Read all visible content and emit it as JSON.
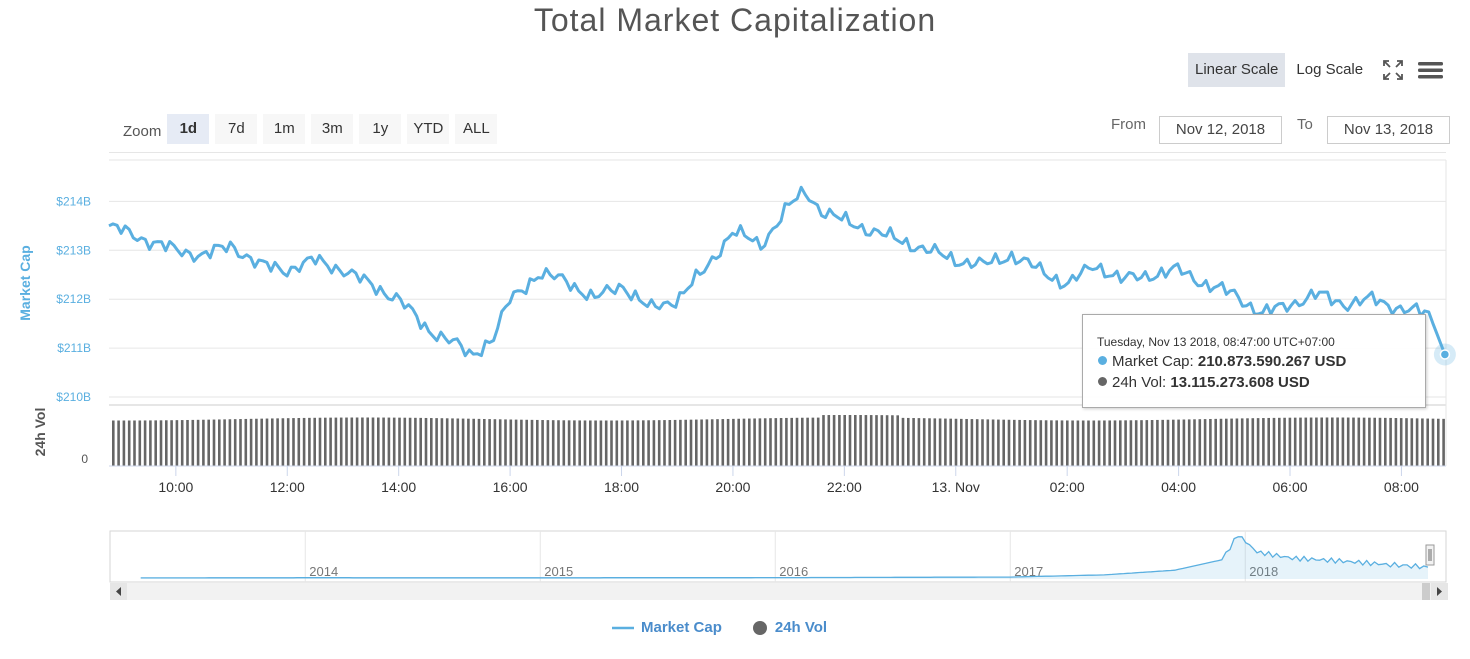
{
  "title": "Total Market Capitalization",
  "scale": {
    "linear_label": "Linear Scale",
    "log_label": "Log Scale",
    "active": "linear"
  },
  "zoom": {
    "label": "Zoom",
    "buttons": [
      "1d",
      "7d",
      "1m",
      "3m",
      "1y",
      "YTD",
      "ALL"
    ],
    "active": "1d"
  },
  "range": {
    "from_label": "From",
    "from_value": "Nov 12, 2018",
    "to_label": "To",
    "to_value": "Nov 13, 2018"
  },
  "tooltip": {
    "header": "Tuesday, Nov 13 2018, 08:47:00 UTC+07:00",
    "market_cap_label": "Market Cap:",
    "market_cap_value": "210.873.590.267 USD",
    "vol_label": "24h Vol:",
    "vol_value": "13.115.273.608 USD"
  },
  "legend": {
    "market_cap": "Market Cap",
    "vol": "24h Vol"
  },
  "colors": {
    "market_cap": "#5aafe0",
    "vol": "#666666",
    "active_btn": "#dfe3ea"
  },
  "icons": [
    "fullscreen-icon",
    "menu-icon"
  ],
  "chart_data": [
    {
      "type": "line",
      "title": "Total Market Capitalization",
      "xlabel": "",
      "ylabel": "Market Cap",
      "x_tick_labels": [
        "10:00",
        "12:00",
        "14:00",
        "16:00",
        "18:00",
        "20:00",
        "22:00",
        "13. Nov",
        "02:00",
        "04:00",
        "06:00",
        "08:00"
      ],
      "x_range_hours": [
        8.8,
        32.8
      ],
      "y_tick_labels": [
        "$210B",
        "$211B",
        "$212B",
        "$213B",
        "$214B"
      ],
      "ylim": [
        210,
        215
      ],
      "y_unit": "billion USD",
      "grid": true,
      "series": [
        {
          "name": "Market Cap",
          "x_hours": [
            8.8,
            9.5,
            10.0,
            10.5,
            11.0,
            11.5,
            12.0,
            12.5,
            13.0,
            13.5,
            14.0,
            14.5,
            15.0,
            15.3,
            15.7,
            16.0,
            16.5,
            17.0,
            17.5,
            18.0,
            18.5,
            19.0,
            19.5,
            20.0,
            20.5,
            21.0,
            21.3,
            21.6,
            22.0,
            22.5,
            23.0,
            23.5,
            24.0,
            24.5,
            25.0,
            25.5,
            26.0,
            26.5,
            27.0,
            27.5,
            28.0,
            28.5,
            29.0,
            29.5,
            30.0,
            30.5,
            31.0,
            31.5,
            32.0,
            32.5,
            32.78
          ],
          "values": [
            213.5,
            213.2,
            213.0,
            212.9,
            213.1,
            212.7,
            212.6,
            212.8,
            212.6,
            212.3,
            212.0,
            211.4,
            211.1,
            210.85,
            211.2,
            212.0,
            212.5,
            212.4,
            212.0,
            212.3,
            211.8,
            212.0,
            212.6,
            213.4,
            213.1,
            213.9,
            214.2,
            213.8,
            213.6,
            213.4,
            213.2,
            213.0,
            212.8,
            212.7,
            212.9,
            212.6,
            212.3,
            212.7,
            212.4,
            212.5,
            212.6,
            212.3,
            212.1,
            211.7,
            211.9,
            212.1,
            211.9,
            212.0,
            211.8,
            211.7,
            210.87
          ]
        },
        {
          "name": "24h Vol",
          "type": "column",
          "value_approx": 13.1,
          "unit": "billion USD"
        }
      ],
      "vol_axis": {
        "label": "24h Vol",
        "tick_labels": [
          "0"
        ]
      },
      "legend_position": "bottom-center"
    },
    {
      "type": "area",
      "title": "navigator",
      "x_tick_labels": [
        "2014",
        "2015",
        "2016",
        "2017",
        "2018"
      ],
      "x": [
        2013.3,
        2014.0,
        2015.0,
        2016.0,
        2017.0,
        2017.4,
        2017.7,
        2017.9,
        2017.97,
        2018.05,
        2018.2,
        2018.4,
        2018.6,
        2018.87
      ],
      "values": [
        1.5,
        5,
        4,
        7,
        18,
        60,
        150,
        350,
        830,
        500,
        380,
        330,
        260,
        210
      ],
      "unit": "billion USD"
    }
  ]
}
